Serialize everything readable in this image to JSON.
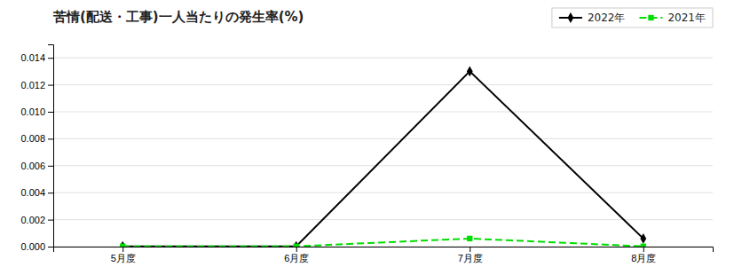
{
  "chart_data": {
    "type": "line",
    "title": "苦情(配送・工事)一人当たりの発生率(%)",
    "categories": [
      "5月度",
      "6月度",
      "7月度",
      "8月度"
    ],
    "series": [
      {
        "name": "2022年",
        "color": "#000000",
        "marker": "diamond",
        "line_style": "solid",
        "values": [
          2e-05,
          2e-05,
          0.013,
          0.0006
        ]
      },
      {
        "name": "2021年",
        "color": "#00dd00",
        "marker": "square",
        "line_style": "dashed",
        "values": [
          2e-05,
          2e-05,
          0.0006,
          2e-05
        ]
      }
    ],
    "ylim": [
      0,
      0.015
    ],
    "yticks": [
      {
        "value": 0,
        "label": "0.000"
      },
      0.002,
      0.004,
      0.006,
      0.008,
      {
        "value": 0.01,
        "label": "0.010"
      },
      0.012,
      0.014
    ],
    "grid": true,
    "legend": "upper right"
  }
}
